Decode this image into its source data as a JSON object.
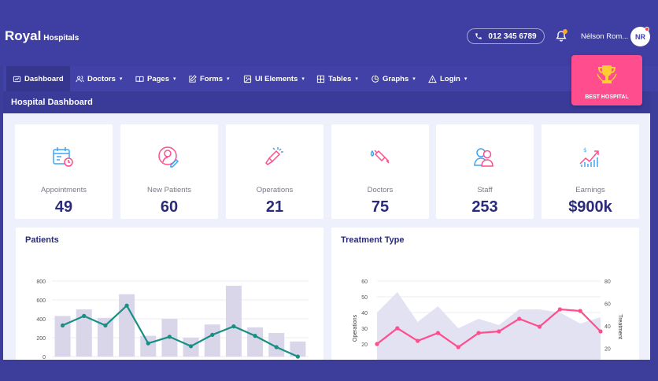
{
  "brand": {
    "name": "Royal",
    "sub": "Hospitals"
  },
  "header": {
    "phone": "012 345 6789",
    "user_name": "Nélson Rom...",
    "user_initials": "NR"
  },
  "nav": [
    {
      "label": "Dashboard",
      "icon": "dashboard-icon",
      "active": true,
      "caret": ""
    },
    {
      "label": "Doctors",
      "icon": "users-icon",
      "caret": "▾"
    },
    {
      "label": "Pages",
      "icon": "book-icon",
      "caret": "▾"
    },
    {
      "label": "Forms",
      "icon": "edit-icon",
      "caret": "▾"
    },
    {
      "label": "UI Elements",
      "icon": "image-icon",
      "caret": "▾"
    },
    {
      "label": "Tables",
      "icon": "grid-icon",
      "caret": "▾"
    },
    {
      "label": "Graphs",
      "icon": "pie-icon",
      "caret": "▾"
    },
    {
      "label": "Login",
      "icon": "warning-icon",
      "caret": "▾"
    }
  ],
  "page_title": "Hospital Dashboard",
  "badge": {
    "label": "BEST HOSPITAL",
    "icon": "trophy-icon"
  },
  "stats": [
    {
      "label": "Appointments",
      "value": "49",
      "icon": "calendar-icon",
      "color": "#3da5f4"
    },
    {
      "label": "New Patients",
      "value": "60",
      "icon": "patient-icon",
      "color": "#ff4d8d"
    },
    {
      "label": "Operations",
      "value": "21",
      "icon": "operation-icon",
      "color": "#ff4d8d"
    },
    {
      "label": "Doctors",
      "value": "75",
      "icon": "syringe-icon",
      "color": "#ff4d8d"
    },
    {
      "label": "Staff",
      "value": "253",
      "icon": "staff-icon",
      "color": "#3da5f4"
    },
    {
      "label": "Earnings",
      "value": "$900k",
      "icon": "earnings-icon",
      "color": "#ff4d8d"
    }
  ],
  "colors": {
    "accent": "#3f3fa3",
    "pink": "#ff4d8d",
    "teal": "#178f82",
    "bar": "#d9d6ea",
    "dark_text": "#2b2b7a"
  },
  "chart_data": [
    {
      "type": "bar",
      "title": "Patients",
      "ylim": [
        0,
        800
      ],
      "yticks": [
        0,
        200,
        400,
        600,
        800
      ],
      "series": [
        {
          "name": "bars",
          "values": [
            430,
            500,
            410,
            660,
            220,
            400,
            200,
            340,
            750,
            310,
            250,
            160
          ]
        },
        {
          "name": "line",
          "values": [
            330,
            430,
            330,
            540,
            140,
            210,
            110,
            230,
            320,
            220,
            100,
            0
          ]
        }
      ]
    },
    {
      "type": "line",
      "title": "Treatment Type",
      "ylabel": "Operations",
      "y2label": "Treatment",
      "ylim": [
        10,
        60
      ],
      "yticks": [
        20,
        30,
        40,
        50,
        60
      ],
      "y2lim": [
        10,
        80
      ],
      "y2ticks": [
        20,
        40,
        60,
        80
      ],
      "series": [
        {
          "name": "area",
          "values": [
            40,
            53,
            34,
            44,
            30,
            36,
            32,
            42,
            42,
            40,
            33,
            37
          ]
        },
        {
          "name": "line",
          "values": [
            20,
            30,
            22,
            27,
            18,
            27,
            28,
            36,
            31,
            42,
            41,
            28
          ]
        }
      ]
    }
  ]
}
